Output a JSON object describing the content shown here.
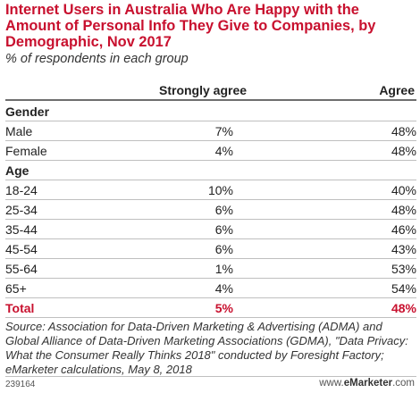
{
  "chart_data": {
    "type": "table",
    "title": "Internet Users in Australia Who Are Happy with the Amount of Personal Info They Give to Companies, by Demographic, Nov 2017",
    "subtitle": "% of respondents in each group",
    "columns": [
      "Strongly agree",
      "Agree"
    ],
    "groups": [
      {
        "name": "Gender",
        "rows": [
          {
            "label": "Male",
            "strongly_agree": "7%",
            "agree": "48%"
          },
          {
            "label": "Female",
            "strongly_agree": "4%",
            "agree": "48%"
          }
        ]
      },
      {
        "name": "Age",
        "rows": [
          {
            "label": "18-24",
            "strongly_agree": "10%",
            "agree": "40%"
          },
          {
            "label": "25-34",
            "strongly_agree": "6%",
            "agree": "48%"
          },
          {
            "label": "35-44",
            "strongly_agree": "6%",
            "agree": "46%"
          },
          {
            "label": "45-54",
            "strongly_agree": "6%",
            "agree": "43%"
          },
          {
            "label": "55-64",
            "strongly_agree": "1%",
            "agree": "53%"
          },
          {
            "label": "65+",
            "strongly_agree": "4%",
            "agree": "54%"
          }
        ]
      }
    ],
    "total": {
      "label": "Total",
      "strongly_agree": "5%",
      "agree": "48%"
    }
  },
  "source": "Source: Association for Data-Driven Marketing & Advertising (ADMA) and Global Alliance of Data-Driven Marketing Associations (GDMA), \"Data Privacy: What the Consumer Really Thinks 2018\" conducted by Foresight Factory; eMarketer calculations, May 8, 2018",
  "footer": {
    "chart_id": "239164",
    "brand_prefix": "www.",
    "brand_name": "eMarketer",
    "brand_suffix": ".com"
  },
  "colors": {
    "accent": "#c8102e",
    "text": "#222222",
    "rule": "#bfbfbf"
  }
}
